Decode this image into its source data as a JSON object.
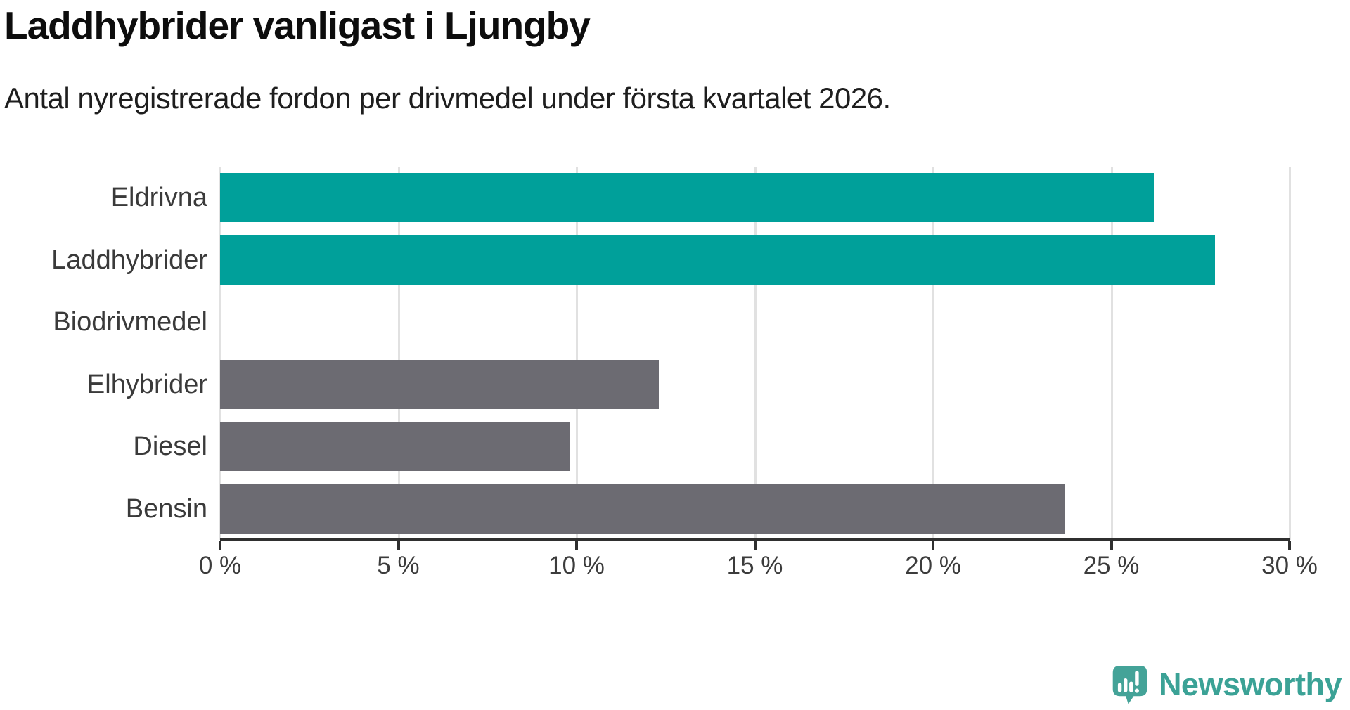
{
  "title": "Laddhybrider vanligast i Ljungby",
  "subtitle": "Antal nyregistrerade fordon per drivmedel under första kvartalet 2026.",
  "chart_data": {
    "type": "bar",
    "orientation": "horizontal",
    "title": "Laddhybrider vanligast i Ljungby",
    "subtitle": "Antal nyregistrerade fordon per drivmedel under första kvartalet 2026.",
    "categories": [
      "Eldrivna",
      "Laddhybrider",
      "Biodrivmedel",
      "Elhybrider",
      "Diesel",
      "Bensin"
    ],
    "values": [
      26.2,
      27.9,
      0,
      12.3,
      9.8,
      23.7
    ],
    "unit": "%",
    "xlim": [
      0,
      30
    ],
    "xticks": [
      0,
      5,
      10,
      15,
      20,
      25,
      30
    ],
    "xtick_labels": [
      "0 %",
      "5 %",
      "10 %",
      "15 %",
      "20 %",
      "25 %",
      "30 %"
    ],
    "bar_colors": [
      "#00A09A",
      "#00A09A",
      "#6C6B72",
      "#6C6B72",
      "#6C6B72",
      "#6C6B72"
    ],
    "highlight_color": "#00A09A",
    "default_color": "#6C6B72",
    "grid": true,
    "gridline_color": "#e1e1e1",
    "axis_color": "#2f2f2f",
    "legend": "none"
  },
  "branding": {
    "logo_text": "Newsworthy",
    "logo_color": "#3BA296",
    "logo_icon": "speech-bubble-bar-chart-icon"
  }
}
